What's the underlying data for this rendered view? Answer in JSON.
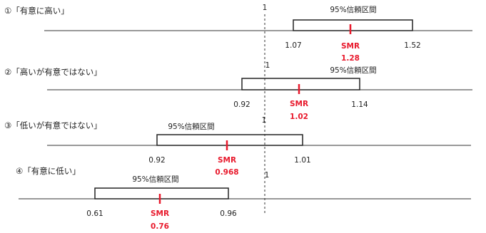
{
  "ci_label": "95%信頼区間",
  "smr_label": "SMR",
  "ref_value": "1",
  "accent_color": "#e8192c",
  "panels": [
    {
      "title": "①「有意に高い」",
      "lower": "1.07",
      "upper": "1.52",
      "smr": "1.28"
    },
    {
      "title": "②「高いが有意ではない」",
      "lower": "0.92",
      "upper": "1.14",
      "smr": "1.02"
    },
    {
      "title": "③「低いが有意ではない」",
      "lower": "0.92",
      "upper": "1.01",
      "smr": "0.968"
    },
    {
      "title": "④「有意に低い」",
      "lower": "0.61",
      "upper": "0.96",
      "smr": "0.76"
    }
  ]
}
